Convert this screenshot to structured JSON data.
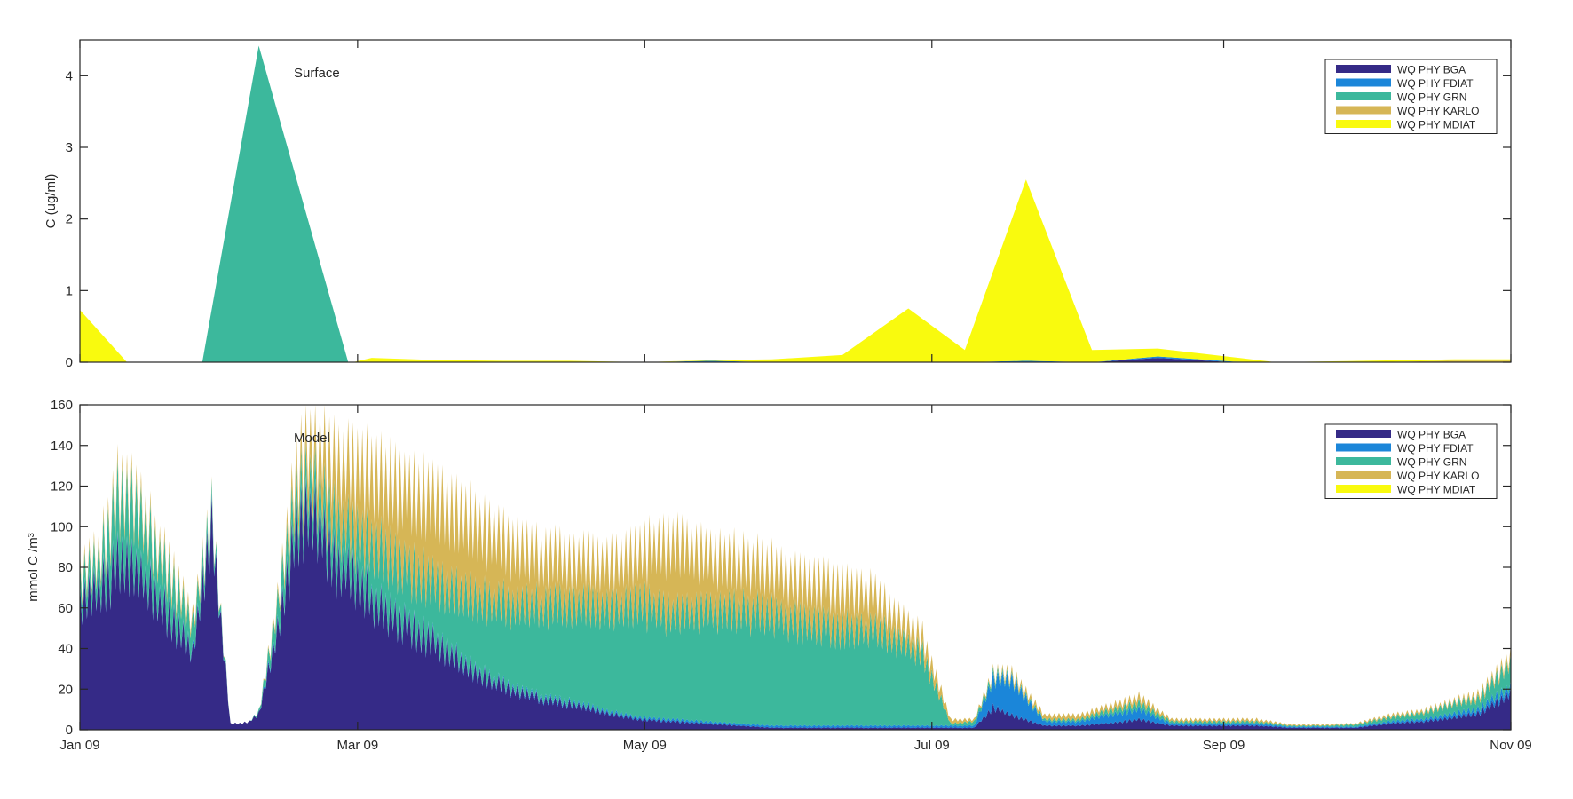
{
  "figure": {
    "background": "#ffffff"
  },
  "series_colors": {
    "WQ PHY BGA": "#352a87",
    "WQ PHY FDIAT": "#1b86d9",
    "WQ PHY GRN": "#3cb89c",
    "WQ PHY KARLO": "#d6b656",
    "WQ PHY MDIAT": "#f9fa0e"
  },
  "chart_data": [
    {
      "type": "area",
      "stacked": true,
      "title": "Surface",
      "ylabel": "C (ug/ml)",
      "xlabel": "",
      "x_axis": "date",
      "xlim": [
        "2009-01-01",
        "2009-11-01"
      ],
      "ylim": [
        0,
        4.5
      ],
      "yticks": [
        0,
        1,
        2,
        3,
        4
      ],
      "xtick_dates": [
        "2009-01-01",
        "2009-03-01",
        "2009-05-01",
        "2009-07-01",
        "2009-09-01",
        "2009-11-01"
      ],
      "xtick_labels": [
        "Jan 09",
        "Mar 09",
        "May 09",
        "Jul 09",
        "Sep 09",
        "Nov 09"
      ],
      "grid": false,
      "legend": {
        "position": "top-right",
        "entries": [
          "WQ PHY BGA",
          "WQ PHY FDIAT",
          "WQ PHY GRN",
          "WQ PHY KARLO",
          "WQ PHY MDIAT"
        ]
      },
      "x": [
        "2009-01-01",
        "2009-01-11",
        "2009-01-27",
        "2009-02-08",
        "2009-02-27",
        "2009-02-28",
        "2009-03-04",
        "2009-03-18",
        "2009-04-01",
        "2009-04-15",
        "2009-05-01",
        "2009-05-15",
        "2009-05-28",
        "2009-06-12",
        "2009-06-26",
        "2009-07-08",
        "2009-07-21",
        "2009-08-04",
        "2009-08-18",
        "2009-09-03",
        "2009-09-12",
        "2009-10-01",
        "2009-10-20",
        "2009-11-01"
      ],
      "series": [
        {
          "name": "WQ PHY BGA",
          "values": [
            0,
            0,
            0,
            0,
            0,
            0,
            0,
            0,
            0,
            0,
            0,
            0,
            0,
            0,
            0,
            0,
            0,
            0,
            0.06,
            0,
            0,
            0,
            0,
            0
          ]
        },
        {
          "name": "WQ PHY FDIAT",
          "values": [
            0,
            0,
            0,
            0,
            0,
            0,
            0,
            0,
            0,
            0,
            0,
            0.02,
            0,
            0,
            0,
            0,
            0.02,
            0,
            0.02,
            0.01,
            0,
            0,
            0,
            0
          ]
        },
        {
          "name": "WQ PHY GRN",
          "values": [
            0,
            0,
            0,
            4.42,
            0,
            0,
            0,
            0,
            0,
            0,
            0,
            0,
            0,
            0,
            0,
            0,
            0,
            0,
            0,
            0,
            0,
            0,
            0,
            0
          ]
        },
        {
          "name": "WQ PHY KARLO",
          "values": [
            0,
            0,
            0,
            0,
            0,
            0,
            0,
            0,
            0,
            0,
            0,
            0,
            0,
            0,
            0,
            0,
            0,
            0,
            0,
            0,
            0,
            0,
            0.02,
            0.02
          ]
        },
        {
          "name": "WQ PHY MDIAT",
          "values": [
            0.73,
            0,
            0,
            0,
            0,
            0,
            0.06,
            0.03,
            0.02,
            0.02,
            0,
            0.01,
            0.04,
            0.1,
            0.75,
            0.17,
            2.53,
            0.17,
            0.11,
            0.06,
            0,
            0.02,
            0.02,
            0.02
          ]
        }
      ]
    },
    {
      "type": "area",
      "stacked": true,
      "title": "Model",
      "ylabel": "mmol C /m³",
      "xlabel": "",
      "x_axis": "date",
      "xlim": [
        "2009-01-01",
        "2009-11-01"
      ],
      "ylim": [
        0,
        160
      ],
      "yticks": [
        0,
        20,
        40,
        60,
        80,
        100,
        120,
        140,
        160
      ],
      "xtick_dates": [
        "2009-01-01",
        "2009-03-01",
        "2009-05-01",
        "2009-07-01",
        "2009-09-01",
        "2009-11-01"
      ],
      "xtick_labels": [
        "Jan 09",
        "Mar 09",
        "May 09",
        "Jul 09",
        "Sep 09",
        "Nov 09"
      ],
      "grid": false,
      "legend": {
        "position": "top-right",
        "entries": [
          "WQ PHY BGA",
          "WQ PHY FDIAT",
          "WQ PHY GRN",
          "WQ PHY KARLO",
          "WQ PHY MDIAT"
        ]
      },
      "oscillation": "daily cycle visible as spiky edges",
      "x": [
        "2009-01-01",
        "2009-01-05",
        "2009-01-09",
        "2009-01-13",
        "2009-01-17",
        "2009-01-21",
        "2009-01-25",
        "2009-01-29",
        "2009-02-02",
        "2009-02-04",
        "2009-02-06",
        "2009-02-08",
        "2009-02-10",
        "2009-02-13",
        "2009-02-16",
        "2009-02-20",
        "2009-02-24",
        "2009-02-28",
        "2009-03-05",
        "2009-03-12",
        "2009-03-19",
        "2009-03-26",
        "2009-04-02",
        "2009-04-09",
        "2009-04-16",
        "2009-04-23",
        "2009-04-30",
        "2009-05-07",
        "2009-05-14",
        "2009-05-21",
        "2009-05-28",
        "2009-06-04",
        "2009-06-11",
        "2009-06-18",
        "2009-06-21",
        "2009-06-25",
        "2009-06-29",
        "2009-07-05",
        "2009-07-10",
        "2009-07-14",
        "2009-07-18",
        "2009-07-25",
        "2009-08-01",
        "2009-08-07",
        "2009-08-14",
        "2009-08-21",
        "2009-09-01",
        "2009-09-08",
        "2009-09-15",
        "2009-09-22",
        "2009-09-29",
        "2009-10-06",
        "2009-10-13",
        "2009-10-20",
        "2009-10-25",
        "2009-10-28",
        "2009-11-01"
      ],
      "series": [
        {
          "name": "WQ PHY BGA",
          "values": [
            65,
            68,
            80,
            78,
            65,
            52,
            38,
            100,
            3,
            3,
            4,
            8,
            28,
            60,
            98,
            107,
            82,
            76,
            60,
            50,
            40,
            28,
            20,
            15,
            12,
            8,
            5,
            4,
            3,
            2,
            1,
            1,
            1,
            1,
            1,
            1,
            1,
            1,
            1,
            11,
            7,
            2,
            2,
            3,
            5,
            2,
            2,
            2,
            1,
            1,
            1,
            3,
            4,
            6,
            8,
            12,
            18
          ]
        },
        {
          "name": "WQ PHY FDIAT",
          "values": [
            1,
            1,
            1,
            1,
            1,
            1,
            1,
            1,
            0,
            0,
            0,
            0,
            1,
            1,
            1,
            1,
            1,
            1,
            1,
            1,
            1,
            1,
            1,
            1,
            1,
            1,
            1,
            1,
            1,
            1,
            1,
            1,
            1,
            1,
            1,
            1,
            1,
            1,
            1,
            14,
            17,
            2,
            2,
            4,
            5,
            1,
            1,
            1,
            0.5,
            0.5,
            0.5,
            1,
            1,
            2,
            2,
            3,
            3
          ]
        },
        {
          "name": "WQ PHY GRN",
          "values": [
            10,
            12,
            30,
            30,
            22,
            18,
            12,
            5,
            0,
            0,
            0,
            1,
            5,
            15,
            15,
            15,
            20,
            20,
            28,
            27,
            30,
            35,
            40,
            44,
            48,
            50,
            55,
            52,
            55,
            55,
            55,
            50,
            48,
            47,
            45,
            40,
            35,
            1,
            2,
            2,
            1,
            1,
            1,
            2,
            3,
            1,
            1,
            1,
            0.5,
            0.5,
            1,
            2,
            3,
            5,
            5,
            8,
            12
          ]
        },
        {
          "name": "WQ PHY KARLO",
          "values": [
            3,
            3,
            5,
            5,
            4,
            4,
            3,
            1,
            0,
            0,
            0,
            0,
            1,
            3,
            12,
            20,
            28,
            32,
            35,
            38,
            40,
            37,
            30,
            25,
            22,
            22,
            25,
            35,
            27,
            24,
            22,
            20,
            20,
            18,
            14,
            10,
            8,
            2,
            1,
            1,
            2,
            2,
            2,
            2,
            3,
            1,
            1,
            1,
            0.5,
            0.5,
            0.5,
            1,
            1,
            1,
            2,
            2,
            3
          ]
        },
        {
          "name": "WQ PHY MDIAT",
          "values": [
            0,
            0,
            0,
            0,
            0,
            0,
            0,
            0,
            0,
            0,
            0,
            0,
            0,
            0,
            0,
            0,
            0,
            0,
            0,
            0,
            0,
            0,
            0,
            0,
            0,
            0,
            0,
            0,
            0,
            0,
            0,
            0,
            0,
            0,
            0,
            0,
            0,
            0,
            0,
            0,
            0,
            0,
            0,
            0,
            0,
            0,
            0,
            0,
            0,
            0,
            0,
            0,
            0,
            0,
            0,
            0,
            0
          ]
        }
      ]
    }
  ]
}
